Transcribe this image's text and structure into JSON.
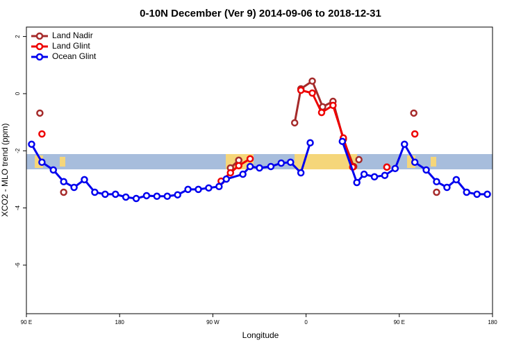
{
  "chart_data": {
    "type": "line",
    "title": "0-10N December (Ver 9)   2014-09-06 to 2018-12-31",
    "x_label": "Longitude",
    "y_label": "XCO2 - MLO trend (ppm)",
    "xlim": [
      90,
      540
    ],
    "ylim": [
      -7.7,
      2.33
    ],
    "xticks": [
      {
        "value": 90,
        "label": "90 E"
      },
      180,
      {
        "value": 270,
        "label": "90 W"
      },
      {
        "value": 360,
        "label": "0"
      },
      {
        "value": 450,
        "label": "90 E"
      },
      {
        "value": 540,
        "label": "180"
      }
    ],
    "yticks": [
      2,
      0,
      -2,
      -4,
      -6
    ],
    "legend": "top-left",
    "series": [
      {
        "name": "Land Nadir",
        "color": "#a52a2a",
        "x": [
          103,
          null,
          126,
          null,
          287,
          295,
          null,
          349,
          355,
          366,
          376,
          386,
          396,
          406,
          null,
          411,
          null,
          438,
          null,
          464,
          null,
          486
        ],
        "values": [
          -0.68,
          null,
          -3.45,
          null,
          -2.6,
          -2.33,
          null,
          -1.02,
          0.17,
          0.44,
          -0.46,
          -0.27,
          -1.6,
          -2.55,
          null,
          -2.31,
          null,
          -2.57,
          null,
          -0.68,
          null,
          -3.45
        ]
      },
      {
        "name": "Land Glint",
        "color": "#ee0000",
        "x": [
          105,
          null,
          278,
          287,
          295,
          306,
          null,
          355,
          366,
          375,
          386,
          396,
          405,
          null,
          438,
          null,
          465
        ],
        "values": [
          -1.41,
          null,
          -3.06,
          -2.77,
          -2.52,
          -2.28,
          null,
          0.12,
          0.02,
          -0.66,
          -0.41,
          -1.55,
          -2.57,
          null,
          -2.57,
          null,
          -1.41
        ]
      },
      {
        "name": "Ocean Glint",
        "color": "#0000ee",
        "x": [
          95,
          105,
          116,
          126,
          136,
          146,
          156,
          166,
          176,
          186,
          196,
          206,
          216,
          226,
          236,
          246,
          256,
          266,
          276,
          283,
          299,
          306,
          315,
          326,
          336,
          345,
          355,
          364,
          null,
          395,
          409,
          416,
          426,
          436,
          446,
          455,
          465,
          476,
          486,
          496,
          505,
          515,
          525,
          535
        ],
        "values": [
          -1.77,
          -2.4,
          -2.67,
          -3.08,
          -3.28,
          -3.01,
          -3.45,
          -3.52,
          -3.52,
          -3.62,
          -3.67,
          -3.57,
          -3.59,
          -3.59,
          -3.54,
          -3.35,
          -3.35,
          -3.3,
          -3.25,
          -2.99,
          -2.82,
          -2.55,
          -2.6,
          -2.55,
          -2.43,
          -2.4,
          -2.77,
          -1.72,
          null,
          -1.67,
          -3.11,
          -2.82,
          -2.91,
          -2.86,
          -2.62,
          -1.77,
          -2.4,
          -2.67,
          -3.08,
          -3.28,
          -3.01,
          -3.45,
          -3.52,
          -3.52
        ]
      }
    ]
  }
}
